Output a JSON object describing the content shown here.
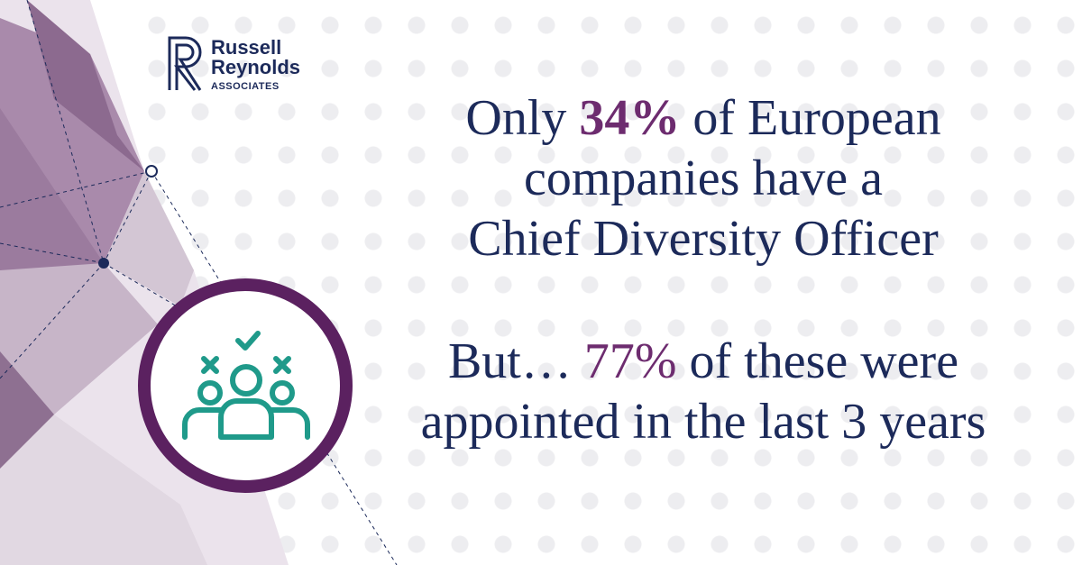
{
  "logo": {
    "line1": "Russell",
    "line2": "Reynolds",
    "line3": "ASSOCIATES"
  },
  "statement1": {
    "line1": {
      "intro": "Only",
      "figure": "34%",
      "rest": "of European"
    },
    "line2": "companies have a",
    "line3": "Chief Diversity Officer"
  },
  "statement2": {
    "line1": {
      "intro": "But…",
      "figure": "77%",
      "rest": "of these were"
    },
    "line2": "appointed in the last 3 years"
  }
}
